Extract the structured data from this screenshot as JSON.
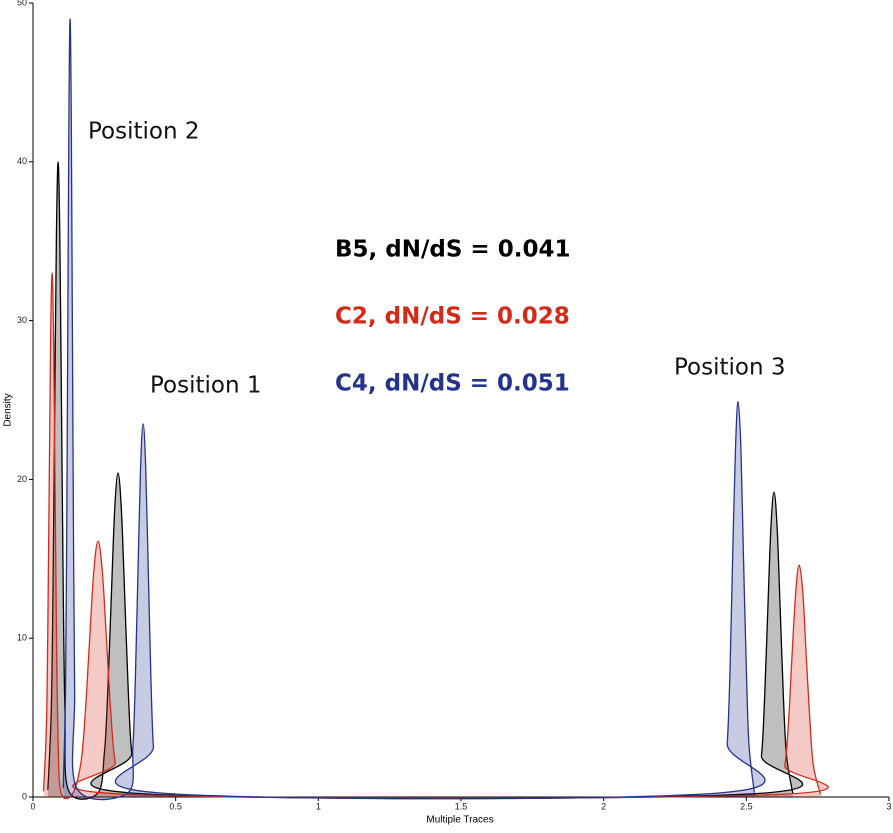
{
  "chart_data": {
    "type": "line",
    "xlabel": "Multiple Traces",
    "ylabel": "Density",
    "xlim": [
      0,
      3
    ],
    "xticks": [
      0,
      0.5,
      1,
      1.5,
      2,
      2.5,
      3
    ],
    "ylim": [
      0,
      50
    ],
    "yticks": [
      0,
      10,
      20,
      30,
      40,
      50
    ],
    "grid": false,
    "annotations": [
      "Position 2",
      "Position 1",
      "Position 3"
    ],
    "series": [
      {
        "name": "B5, dN/dS = 0.041",
        "color": "#000000",
        "x": [
          0.052,
          0.064,
          0.07,
          0.076,
          0.082,
          0.088,
          0.094,
          0.1,
          0.106,
          0.112,
          0.124,
          0.226,
          0.25,
          0.262,
          0.274,
          0.286,
          0.298,
          0.31,
          0.322,
          0.334,
          0.346,
          0.37,
          2.531,
          2.553,
          2.564,
          2.575,
          2.586,
          2.597,
          2.608,
          2.619,
          2.63,
          2.641,
          2.663
        ],
        "values": [
          0.44,
          5.4,
          13,
          24.3,
          35.3,
          40,
          35.3,
          24.3,
          13,
          5.4,
          0.44,
          0.22,
          2.75,
          6.63,
          12.38,
          17.99,
          20.4,
          17.99,
          12.38,
          6.63,
          2.75,
          0.22,
          0.21,
          2.59,
          6.24,
          11.65,
          16.93,
          19.2,
          16.93,
          11.65,
          6.24,
          2.59,
          0.21
        ]
      },
      {
        "name": "C2, dN/dS = 0.028",
        "color": "#d42a1a",
        "x": [
          0.037,
          0.047,
          0.052,
          0.057,
          0.062,
          0.067,
          0.072,
          0.077,
          0.082,
          0.087,
          0.097,
          0.138,
          0.168,
          0.183,
          0.198,
          0.213,
          0.228,
          0.243,
          0.258,
          0.273,
          0.288,
          0.318,
          2.61,
          2.635,
          2.648,
          2.66,
          2.673,
          2.685,
          2.698,
          2.71,
          2.723,
          2.735,
          2.76
        ],
        "values": [
          0.36,
          4.46,
          10.73,
          20.03,
          29.11,
          33,
          29.11,
          20.03,
          10.73,
          4.46,
          0.36,
          0.18,
          2.17,
          5.23,
          9.77,
          14.2,
          16.1,
          14.2,
          9.77,
          5.23,
          2.17,
          0.18,
          0.16,
          1.97,
          4.75,
          8.86,
          12.88,
          14.6,
          12.88,
          8.86,
          4.75,
          1.97,
          0.16
        ]
      },
      {
        "name": "C4, dN/dS = 0.051",
        "color": "#25338c",
        "x": [
          0.106,
          0.114,
          0.118,
          0.122,
          0.126,
          0.13,
          0.134,
          0.138,
          0.142,
          0.146,
          0.154,
          0.332,
          0.35,
          0.359,
          0.368,
          0.377,
          0.386,
          0.395,
          0.404,
          0.413,
          0.422,
          0.44,
          2.414,
          2.433,
          2.443,
          2.452,
          2.462,
          2.471,
          2.481,
          2.49,
          2.5,
          2.509,
          2.528
        ],
        "values": [
          0.54,
          6.62,
          15.93,
          29.74,
          43.22,
          49,
          43.22,
          29.74,
          15.93,
          6.62,
          0.54,
          0.26,
          3.17,
          7.64,
          14.26,
          20.73,
          23.5,
          20.73,
          14.26,
          7.64,
          3.17,
          0.26,
          0.27,
          3.36,
          8.09,
          15.11,
          21.96,
          24.9,
          21.96,
          15.11,
          8.09,
          3.36,
          0.27
        ]
      }
    ]
  }
}
